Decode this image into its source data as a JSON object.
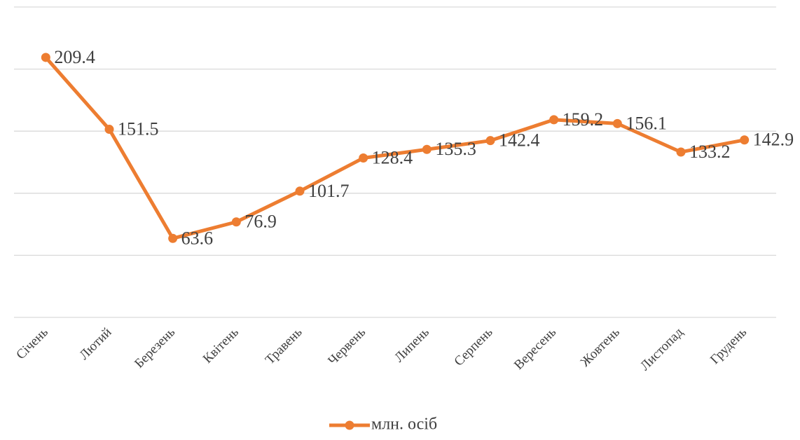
{
  "chart_data": {
    "type": "line",
    "categories": [
      "Січень",
      "Лютий",
      "Березень",
      "Квітень",
      "Травень",
      "Червень",
      "Липень",
      "Серпень",
      "Вересень",
      "Жовтень",
      "Листопад",
      "Грудень"
    ],
    "series": [
      {
        "name": "млн. осіб",
        "color": "#ed7d31",
        "values": [
          209.4,
          151.5,
          63.6,
          76.9,
          101.7,
          128.4,
          135.3,
          142.4,
          159.2,
          156.1,
          133.2,
          142.9
        ]
      }
    ],
    "ylim": [
      0,
      250
    ],
    "yticks": [
      0,
      50,
      100,
      150,
      200,
      250
    ],
    "grid": true,
    "legend": "bottom"
  }
}
